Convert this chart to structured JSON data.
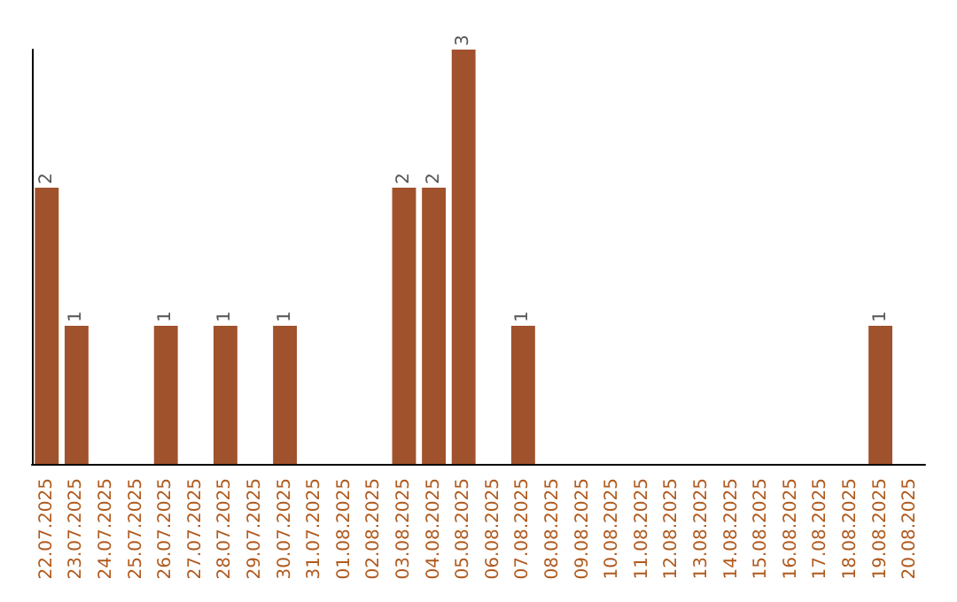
{
  "chart_data": {
    "type": "bar",
    "categories": [
      "22.07.2025",
      "23.07.2025",
      "24.07.2025",
      "25.07.2025",
      "26.07.2025",
      "27.07.2025",
      "28.07.2025",
      "29.07.2025",
      "30.07.2025",
      "31.07.2025",
      "01.08.2025",
      "02.08.2025",
      "03.08.2025",
      "04.08.2025",
      "05.08.2025",
      "06.08.2025",
      "07.08.2025",
      "08.08.2025",
      "09.08.2025",
      "10.08.2025",
      "11.08.2025",
      "12.08.2025",
      "13.08.2025",
      "14.08.2025",
      "15.08.2025",
      "16.08.2025",
      "17.08.2025",
      "18.08.2025",
      "19.08.2025",
      "20.08.2025"
    ],
    "values": [
      2,
      1,
      0,
      0,
      1,
      0,
      1,
      0,
      1,
      0,
      0,
      0,
      2,
      2,
      3,
      0,
      1,
      0,
      0,
      0,
      0,
      0,
      0,
      0,
      0,
      0,
      0,
      0,
      1,
      0
    ],
    "value_labels": [
      "2",
      "1",
      null,
      null,
      "1",
      null,
      "1",
      null,
      "1",
      null,
      null,
      null,
      "2",
      "2",
      "3",
      null,
      "1",
      null,
      null,
      null,
      null,
      null,
      null,
      null,
      null,
      null,
      null,
      null,
      "1",
      null
    ],
    "color": "#a0522d",
    "tick_labels": "x"
  }
}
